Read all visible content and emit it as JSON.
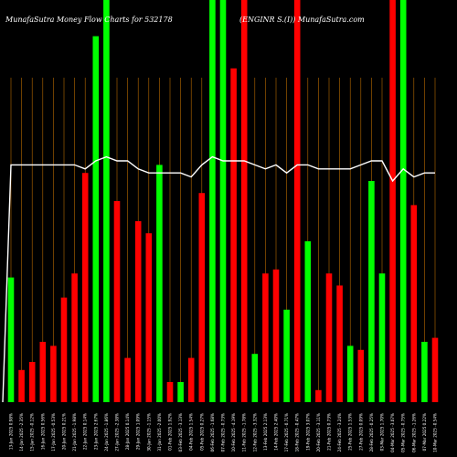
{
  "chart_data": {
    "type": "bar",
    "title_left": "MunafaSutra  Money Flow  Charts for 532178",
    "title_right": "(ENGINR                      S.(I)) MunafaSutra.com",
    "colors": {
      "up": "#00ff00",
      "down": "#ff0000",
      "line": "#ffffff",
      "grid": "#b86a00",
      "background": "#000000"
    },
    "ylim": [
      0,
      100
    ],
    "bars": [
      {
        "date": "13 Jan 2025",
        "label": "13-Jan 2025 0.98%",
        "value": 31,
        "dir": "up",
        "line": 59
      },
      {
        "date": "14 Jan 2025",
        "label": "14-Jan 2025 -2.35%",
        "value": 8,
        "dir": "down",
        "line": 59
      },
      {
        "date": "15 Jan 2025",
        "label": "15-Jan 2025 -0.12%",
        "value": 10,
        "dir": "down",
        "line": 59
      },
      {
        "date": "16 Jan 2025",
        "label": "16-Jan 2025 0.56%",
        "value": 15,
        "dir": "down",
        "line": 59
      },
      {
        "date": "17 Jan 2025",
        "label": "17-Jan 2025 -0.53%",
        "value": 14,
        "dir": "down",
        "line": 59
      },
      {
        "date": "20 Jan 2025",
        "label": "20-Jan 2025 0.21%",
        "value": 26,
        "dir": "down",
        "line": 59
      },
      {
        "date": "21 Jan 2025",
        "label": "21-Jan 2025 -1.98%",
        "value": 32,
        "dir": "down",
        "line": 59
      },
      {
        "date": "22 Jan 2025",
        "label": "22-Jan 2025 0.14%",
        "value": 57,
        "dir": "down",
        "line": 58
      },
      {
        "date": "23 Jan 2025",
        "label": "23-Jan 2025 2.67%",
        "value": 91,
        "dir": "up",
        "line": 60
      },
      {
        "date": "24 Jan 2025",
        "label": "24-Jan 2025 -1.86%",
        "value": 100,
        "dir": "up",
        "line": 61
      },
      {
        "date": "27 Jan 2025",
        "label": "27-Jan 2025 -2.38%",
        "value": 50,
        "dir": "down",
        "line": 60
      },
      {
        "date": "28 Jan 2025",
        "label": "28-Jan 2025 0.14%",
        "value": 11,
        "dir": "down",
        "line": 60
      },
      {
        "date": "29 Jan 2025",
        "label": "29-Jan 2025 1.09%",
        "value": 45,
        "dir": "down",
        "line": 58
      },
      {
        "date": "30 Jan 2025",
        "label": "30-Jan 2025 -1.15%",
        "value": 42,
        "dir": "down",
        "line": 57
      },
      {
        "date": "31 Jan 2025",
        "label": "31-Jan 2025 -2.00%",
        "value": 59,
        "dir": "up",
        "line": 57
      },
      {
        "date": "01 Feb 2025",
        "label": "01-Feb 2025 1.92%",
        "value": 5,
        "dir": "down",
        "line": 57
      },
      {
        "date": "03 Feb 2025",
        "label": "03-Feb 2025 -3.13%",
        "value": 5,
        "dir": "up",
        "line": 57
      },
      {
        "date": "04 Feb 2025",
        "label": "04-Feb 2025 1.54%",
        "value": 11,
        "dir": "down",
        "line": 56
      },
      {
        "date": "05 Feb 2025",
        "label": "05-Feb 2025 0.27%",
        "value": 52,
        "dir": "down",
        "line": 59
      },
      {
        "date": "06 Feb 2025",
        "label": "06-Feb 2025 -1.68%",
        "value": 100,
        "dir": "up",
        "line": 61
      },
      {
        "date": "07 Feb 2025",
        "label": "07-Feb 2025 -0.73%",
        "value": 100,
        "dir": "up",
        "line": 60
      },
      {
        "date": "10 Feb 2025",
        "label": "10-Feb 2025 -4.19%",
        "value": 83,
        "dir": "down",
        "line": 60
      },
      {
        "date": "11 Feb 2025",
        "label": "11-Feb 2025 -1.78%",
        "value": 100,
        "dir": "down",
        "line": 60
      },
      {
        "date": "12 Feb 2025",
        "label": "12-Feb 2025 -3.32%",
        "value": 12,
        "dir": "up",
        "line": 59
      },
      {
        "date": "13 Feb 2025",
        "label": "13-Feb 2025 2.13%",
        "value": 32,
        "dir": "down",
        "line": 58
      },
      {
        "date": "14 Feb 2025",
        "label": "14-Feb 2025 2.40%",
        "value": 33,
        "dir": "down",
        "line": 59
      },
      {
        "date": "17 Feb 2025",
        "label": "17-Feb 2025 -0.71%",
        "value": 23,
        "dir": "up",
        "line": 57
      },
      {
        "date": "18 Feb 2025",
        "label": "18-Feb 2025 -0.47%",
        "value": 100,
        "dir": "down",
        "line": 59
      },
      {
        "date": "19 Feb 2025",
        "label": "19-Feb 2025 3.07%",
        "value": 40,
        "dir": "up",
        "line": 59
      },
      {
        "date": "20 Feb 2025",
        "label": "20-Feb 2025 -3.11%",
        "value": 3,
        "dir": "down",
        "line": 58
      },
      {
        "date": "21 Feb 2025",
        "label": "21-Feb 2025 0.73%",
        "value": 32,
        "dir": "down",
        "line": 58
      },
      {
        "date": "24 Feb 2025",
        "label": "24-Feb 2025 -3.24%",
        "value": 29,
        "dir": "down",
        "line": 58
      },
      {
        "date": "25 Feb 2025",
        "label": "25-Feb 2025 1.53%",
        "value": 14,
        "dir": "up",
        "line": 58
      },
      {
        "date": "27 Feb 2025",
        "label": "27-Feb 2025 0.09%",
        "value": 13,
        "dir": "down",
        "line": 59
      },
      {
        "date": "28 Feb 2025",
        "label": "28-Feb 2025 -0.25%",
        "value": 55,
        "dir": "up",
        "line": 60
      },
      {
        "date": "03 Mar 2025",
        "label": "03-Mar 2025 1.70%",
        "value": 32,
        "dir": "up",
        "line": 60
      },
      {
        "date": "04 Mar 2025",
        "label": "04-Mar 2025 -3.07%",
        "value": 100,
        "dir": "down",
        "line": 55
      },
      {
        "date": "05 Mar 2025",
        "label": "05-Mar 2025 -0.75%",
        "value": 100,
        "dir": "up",
        "line": 58
      },
      {
        "date": "06 Mar 2025",
        "label": "06-Mar 2025 -1.26%",
        "value": 49,
        "dir": "down",
        "line": 56
      },
      {
        "date": "07 Mar 2025",
        "label": "07-Mar 2025 0.22%",
        "value": 15,
        "dir": "up",
        "line": 57
      },
      {
        "date": "10 Mar 2025",
        "label": "10-Mar 2025 -0.54%",
        "value": 16,
        "dir": "down",
        "line": 57
      }
    ]
  }
}
